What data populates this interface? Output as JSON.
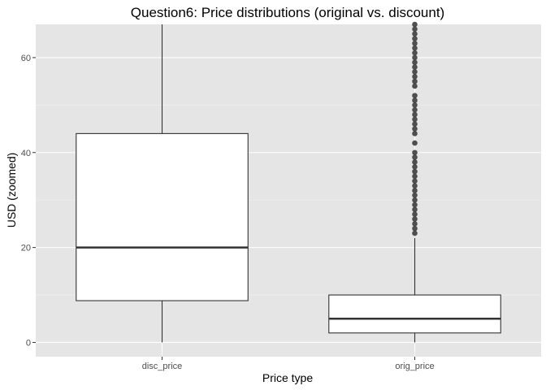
{
  "chart_data": {
    "type": "boxplot",
    "title": "Question6: Price distributions (original vs. discount)",
    "xlabel": "Price type",
    "ylabel": "USD (zoomed)",
    "ylim": [
      -3,
      67
    ],
    "y_ticks": [
      0,
      20,
      40,
      60
    ],
    "categories": [
      "disc_price",
      "orig_price"
    ],
    "boxes": [
      {
        "category": "disc_price",
        "whisker_low": 0,
        "q1": 8.8,
        "median": 20,
        "q3": 44,
        "whisker_high": 67,
        "outliers": []
      },
      {
        "category": "orig_price",
        "whisker_low": 0,
        "q1": 2,
        "median": 5,
        "q3": 10,
        "whisker_high": 22,
        "outliers": [
          23,
          24,
          25,
          26,
          27,
          28,
          29,
          30,
          31,
          32,
          33,
          34,
          35,
          36,
          37,
          38,
          39,
          40,
          42,
          44,
          45,
          46,
          47,
          48,
          49,
          50,
          51,
          52,
          54,
          55,
          56,
          57,
          58,
          59,
          60,
          61,
          62,
          63,
          64,
          65,
          66,
          67
        ]
      }
    ],
    "grid": true,
    "legend": "none",
    "colors": {
      "panel_background": "#e5e5e5",
      "grid_major": "#ffffff",
      "grid_minor": "#f0f0f0",
      "box_fill": "#ffffff",
      "box_line": "#333333",
      "outlier": "#333333"
    }
  }
}
